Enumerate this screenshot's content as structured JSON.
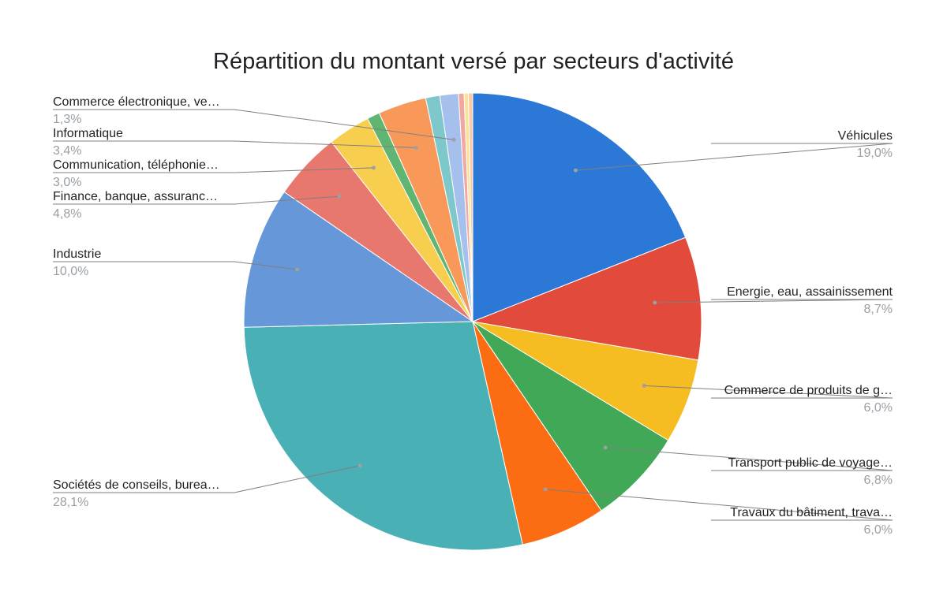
{
  "chart_data": {
    "type": "pie",
    "title": "Répartition du montant versé par secteurs d'activité",
    "start_angle_deg": 0,
    "direction": "clockwise",
    "slices": [
      {
        "label": "Véhicules",
        "value": 19.0,
        "pct_label": "19,0%",
        "color": "#2b78d6",
        "labeled": true
      },
      {
        "label": "Energie, eau, assainissement",
        "value": 8.7,
        "pct_label": "8,7%",
        "color": "#e24a3b",
        "labeled": true
      },
      {
        "label": "Commerce de produits de g…",
        "value": 6.0,
        "pct_label": "6,0%",
        "color": "#f6bd22",
        "labeled": true
      },
      {
        "label": "Transport public de voyage…",
        "value": 6.8,
        "pct_label": "6,8%",
        "color": "#41a857",
        "labeled": true
      },
      {
        "label": "Travaux du bâtiment, trava…",
        "value": 6.0,
        "pct_label": "6,0%",
        "color": "#fc6c13",
        "labeled": true
      },
      {
        "label": "Sociétés de conseils, burea…",
        "value": 28.1,
        "pct_label": "28,1%",
        "color": "#49b0b5",
        "labeled": true
      },
      {
        "label": "Industrie",
        "value": 10.0,
        "pct_label": "10,0%",
        "color": "#6698d9",
        "labeled": true
      },
      {
        "label": "Finance, banque, assuranc…",
        "value": 4.8,
        "pct_label": "4,8%",
        "color": "#e8776e",
        "labeled": true
      },
      {
        "label": "Communication, téléphonie…",
        "value": 3.0,
        "pct_label": "3,0%",
        "color": "#f8ce4f",
        "labeled": true
      },
      {
        "label": "",
        "value": 0.9,
        "pct_label": "",
        "color": "#5fb571",
        "labeled": false
      },
      {
        "label": "Informatique",
        "value": 3.4,
        "pct_label": "3,4%",
        "color": "#f8995a",
        "labeled": true
      },
      {
        "label": "",
        "value": 1.0,
        "pct_label": "",
        "color": "#7ec8cc",
        "labeled": false
      },
      {
        "label": "Commerce électronique, ve…",
        "value": 1.3,
        "pct_label": "1,3%",
        "color": "#a5c0ec",
        "labeled": true
      },
      {
        "label": "",
        "value": 0.4,
        "pct_label": "",
        "color": "#f0a8a2",
        "labeled": false
      },
      {
        "label": "",
        "value": 0.3,
        "pct_label": "",
        "color": "#fbe29a",
        "labeled": false
      },
      {
        "label": "",
        "value": 0.3,
        "pct_label": "",
        "color": "#fbc9a4",
        "labeled": false
      }
    ],
    "legend": "none"
  }
}
